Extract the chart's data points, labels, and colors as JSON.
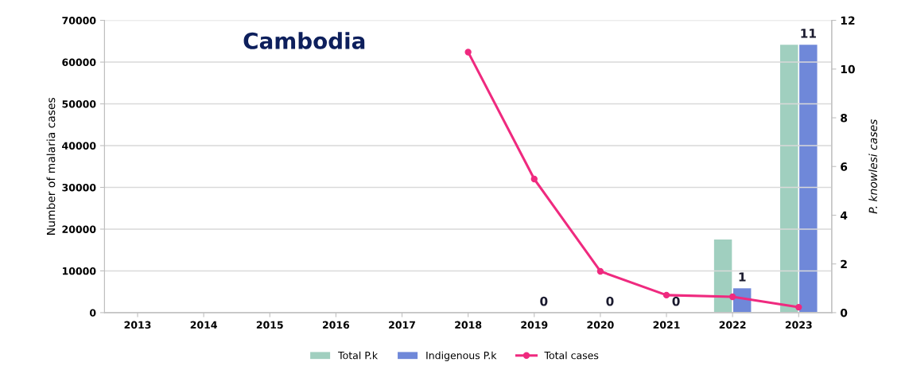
{
  "chart_data": {
    "type": "bar",
    "title": "Cambodia",
    "ylabel": "Number of malaria cases",
    "y2label": "P. knowlesi cases",
    "categories": [
      "2013",
      "2014",
      "2015",
      "2016",
      "2017",
      "2018",
      "2019",
      "2020",
      "2021",
      "2022",
      "2023"
    ],
    "series": [
      {
        "name": "Total P.k",
        "axis": "y2",
        "color": "#a0cfbf",
        "values": [
          null,
          null,
          null,
          null,
          null,
          null,
          null,
          null,
          null,
          3,
          11
        ]
      },
      {
        "name": "Indigenous P.k",
        "axis": "y2",
        "color": "#6f88d9",
        "values": [
          null,
          null,
          null,
          null,
          null,
          null,
          0,
          0,
          0,
          1,
          11
        ],
        "value_labels": [
          null,
          null,
          null,
          null,
          null,
          null,
          "0",
          "0",
          "0",
          "1",
          "11"
        ]
      },
      {
        "name": "Total cases",
        "type": "line",
        "color": "#ef2a7f",
        "marker": "circle",
        "values": [
          null,
          null,
          null,
          null,
          null,
          62400,
          32000,
          9900,
          4200,
          3800,
          1300
        ]
      }
    ],
    "ylim": [
      0,
      70000
    ],
    "yticks": [
      0,
      10000,
      20000,
      30000,
      40000,
      50000,
      60000,
      70000
    ],
    "y2lim": [
      0,
      12
    ],
    "y2ticks": [
      0,
      2,
      4,
      6,
      8,
      10,
      12
    ],
    "grid": "y",
    "legend": "bottom"
  }
}
